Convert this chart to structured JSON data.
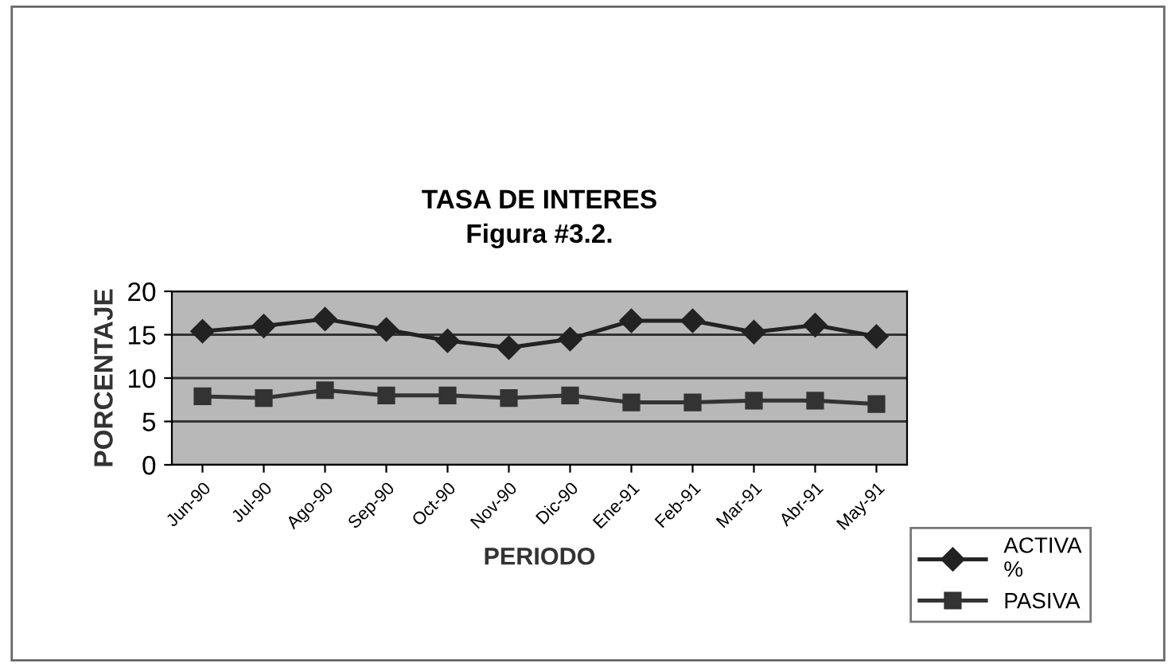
{
  "chart_data": {
    "type": "line",
    "title": "TASA DE INTERES\nFigura #3.2.",
    "xlabel": "PERIODO",
    "ylabel": "PORCENTAJE",
    "categories": [
      "Jun-90",
      "Jul-90",
      "Ago-90",
      "Sep-90",
      "Oct-90",
      "Nov-90",
      "Dic-90",
      "Ene-91",
      "Feb-91",
      "Mar-91",
      "Abr-91",
      "May-91"
    ],
    "series": [
      {
        "name": "ACTIVA\n%",
        "color": "#222222",
        "marker": "diamond",
        "values": [
          15.4,
          16.0,
          16.8,
          15.6,
          14.3,
          13.5,
          14.5,
          16.6,
          16.6,
          15.3,
          16.1,
          14.8
        ]
      },
      {
        "name": "PASIVA",
        "color": "#333333",
        "marker": "square",
        "values": [
          7.9,
          7.7,
          8.6,
          8.0,
          8.0,
          7.7,
          8.0,
          7.2,
          7.2,
          7.4,
          7.4,
          7.0
        ]
      }
    ],
    "ylim": [
      0,
      20
    ],
    "yticks": [
      0,
      5,
      10,
      15,
      20
    ],
    "grid": "y",
    "legend": "bottom right"
  }
}
